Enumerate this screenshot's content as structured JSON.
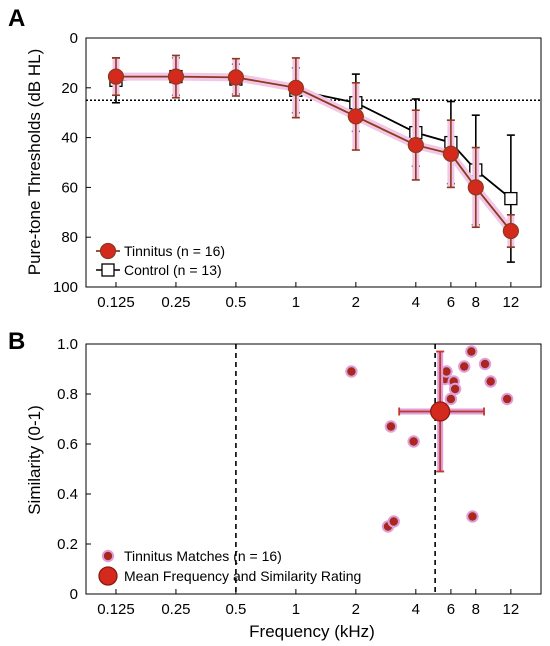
{
  "colors": {
    "tinnitus_fill": "#d42a1e",
    "tinnitus_line": "#8b3a1e",
    "tinnitus_halo": "#f2c6e6",
    "match_fill": "#a9271c",
    "match_halo": "#dda0dd",
    "control_line": "#000000"
  },
  "chart_data": [
    {
      "panel": "A",
      "type": "line",
      "ylabel": "Pure-tone Thresholds (dB HL)",
      "xlabel": "",
      "x_ticks": [
        "0.125",
        "0.25",
        "0.5",
        "1",
        "2",
        "4",
        "6",
        "8",
        "12"
      ],
      "x_tick_values": [
        0.125,
        0.25,
        0.5,
        1,
        2,
        4,
        6,
        8,
        12
      ],
      "x_scale": "log",
      "xlim": [
        0.0884,
        17.0
      ],
      "ylim": [
        0,
        100
      ],
      "y_inverted": true,
      "y_ticks": [
        "0",
        "20",
        "40",
        "60",
        "80",
        "100"
      ],
      "y_tick_values": [
        0,
        20,
        40,
        60,
        80,
        100
      ],
      "reference_line": 25,
      "legend_position": "bottom-left",
      "series": [
        {
          "name": "Tinnitus (n = 16)",
          "marker": "circle",
          "x": [
            0.125,
            0.25,
            0.5,
            1,
            2,
            4,
            6,
            8,
            12
          ],
          "y": [
            15.5,
            15.5,
            15.8,
            20.0,
            31.5,
            43.0,
            46.5,
            60.0,
            77.5
          ],
          "err": [
            7.5,
            8.5,
            7.5,
            12.0,
            13.5,
            14.0,
            13.5,
            16.0,
            6.5
          ]
        },
        {
          "name": "Control (n = 13)",
          "marker": "square",
          "x": [
            0.125,
            0.25,
            0.5,
            1,
            2,
            4,
            6,
            8,
            12
          ],
          "y": [
            17.0,
            15.5,
            16.5,
            21.0,
            26.0,
            38.0,
            42.0,
            53.0,
            64.5
          ],
          "err": [
            9.0,
            7.5,
            6.0,
            9.0,
            11.5,
            13.5,
            16.5,
            22.0,
            25.5
          ]
        }
      ]
    },
    {
      "panel": "B",
      "type": "scatter",
      "xlabel": "Frequency (kHz)",
      "ylabel": "Similarity (0-1)",
      "x_ticks": [
        "0.125",
        "0.25",
        "0.5",
        "1",
        "2",
        "4",
        "6",
        "8",
        "12"
      ],
      "x_tick_values": [
        0.125,
        0.25,
        0.5,
        1,
        2,
        4,
        6,
        8,
        12
      ],
      "x_scale": "log",
      "xlim": [
        0.0884,
        17.0
      ],
      "ylim": [
        0,
        1.0
      ],
      "y_ticks": [
        "0",
        "0.2",
        "0.4",
        "0.6",
        "0.8",
        "1.0"
      ],
      "y_tick_values": [
        0,
        0.2,
        0.4,
        0.6,
        0.8,
        1.0
      ],
      "vertical_lines_khz": [
        0.5,
        5
      ],
      "legend_position": "bottom-left",
      "series": [
        {
          "name": "Tinnitus Matches (n = 16)",
          "x": [
            1.9,
            3.0,
            2.9,
            3.1,
            3.9,
            5.6,
            5.7,
            6.2,
            6.3,
            6.0,
            7.0,
            7.6,
            8.9,
            9.5,
            11.5,
            7.7
          ],
          "y": [
            0.89,
            0.67,
            0.27,
            0.29,
            0.61,
            0.86,
            0.89,
            0.85,
            0.82,
            0.78,
            0.91,
            0.97,
            0.92,
            0.85,
            0.78,
            0.31
          ]
        },
        {
          "name": "Mean Frequency and Similarity Rating",
          "x": [
            5.3
          ],
          "y": [
            0.73
          ],
          "x_err_khz": [
            3.3,
            8.8
          ],
          "y_err": [
            0.24,
            0.24
          ]
        }
      ]
    }
  ]
}
